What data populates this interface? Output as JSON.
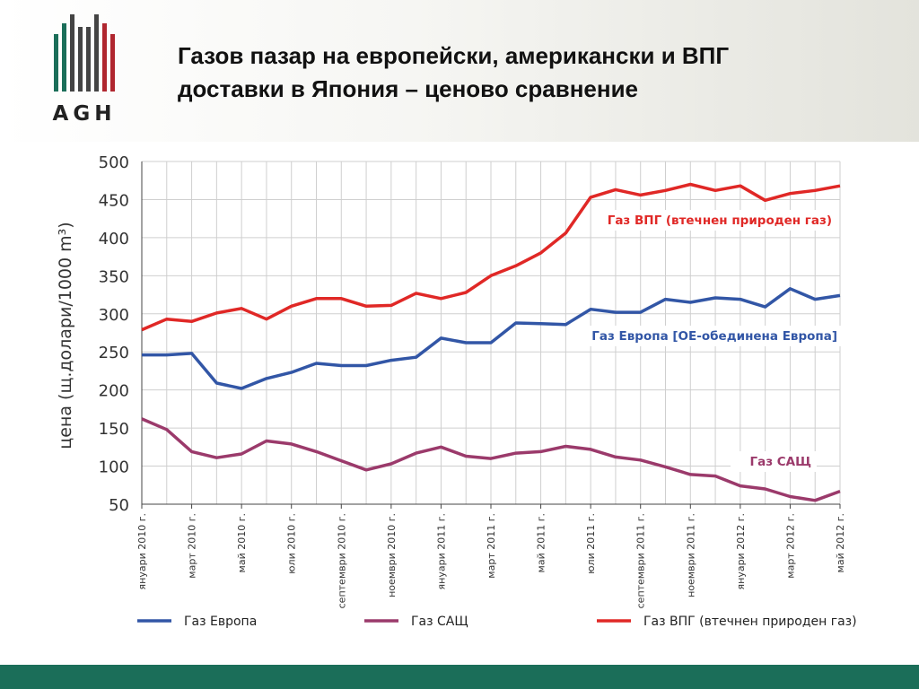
{
  "logo": {
    "text": "AGH"
  },
  "title": {
    "line1": "Газов пазар на европейски, американски и ВПГ",
    "line2": "доставки в Япония – ценово сравнение"
  },
  "colors": {
    "europe": "#3256a6",
    "usa": "#9b3a6b",
    "lng": "#e02826",
    "footer": "#1b6e59"
  },
  "chart_data": {
    "type": "line",
    "ylabel": "цена (щ.долари/1000 m³)",
    "ylim": [
      50,
      500
    ],
    "yticks": [
      50,
      100,
      150,
      200,
      250,
      300,
      350,
      400,
      450,
      500
    ],
    "x_tick_labels": [
      "януари 2010 г.",
      "март 2010 г.",
      "май 2010 г.",
      "юли 2010 г.",
      "септември 2010 г.",
      "ноември 2010 г.",
      "януари 2011 г.",
      "март 2011 г.",
      "май 2011 г.",
      "юли 2011 г.",
      "септември 2011 г.",
      "ноември 2011 г.",
      "януари 2012 г.",
      "март 2012 г.",
      "май 2012 г."
    ],
    "x_months": [
      "2010-01",
      "2010-02",
      "2010-03",
      "2010-04",
      "2010-05",
      "2010-06",
      "2010-07",
      "2010-08",
      "2010-09",
      "2010-10",
      "2010-11",
      "2010-12",
      "2011-01",
      "2011-02",
      "2011-03",
      "2011-04",
      "2011-05",
      "2011-06",
      "2011-07",
      "2011-08",
      "2011-09",
      "2011-10",
      "2011-11",
      "2011-12",
      "2012-01",
      "2012-02",
      "2012-03",
      "2012-04",
      "2012-05"
    ],
    "series": [
      {
        "name": "Газ Европа",
        "label": "Газ Европа [ОЕ-обединена Европа]",
        "color": "#3256a6",
        "values": [
          246,
          246,
          248,
          209,
          202,
          215,
          223,
          235,
          232,
          232,
          239,
          243,
          268,
          262,
          262,
          288,
          287,
          286,
          306,
          302,
          302,
          319,
          315,
          321,
          319,
          309,
          333,
          319,
          324
        ]
      },
      {
        "name": "Газ САЩ",
        "label": "Газ САЩ",
        "color": "#9b3a6b",
        "values": [
          162,
          148,
          119,
          111,
          116,
          133,
          129,
          119,
          107,
          95,
          103,
          117,
          125,
          113,
          110,
          117,
          119,
          126,
          122,
          112,
          108,
          99,
          89,
          87,
          74,
          70,
          60,
          55,
          67
        ]
      },
      {
        "name": "Газ ВПГ (втечнен природен газ)",
        "label": "Газ ВПГ (втечнен природен газ)",
        "color": "#e02826",
        "values": [
          279,
          293,
          290,
          301,
          307,
          293,
          310,
          320,
          320,
          310,
          311,
          327,
          320,
          328,
          350,
          363,
          380,
          406,
          453,
          463,
          456,
          462,
          470,
          462,
          468,
          449,
          458,
          462,
          468
        ]
      }
    ],
    "legend_position": "bottom"
  }
}
